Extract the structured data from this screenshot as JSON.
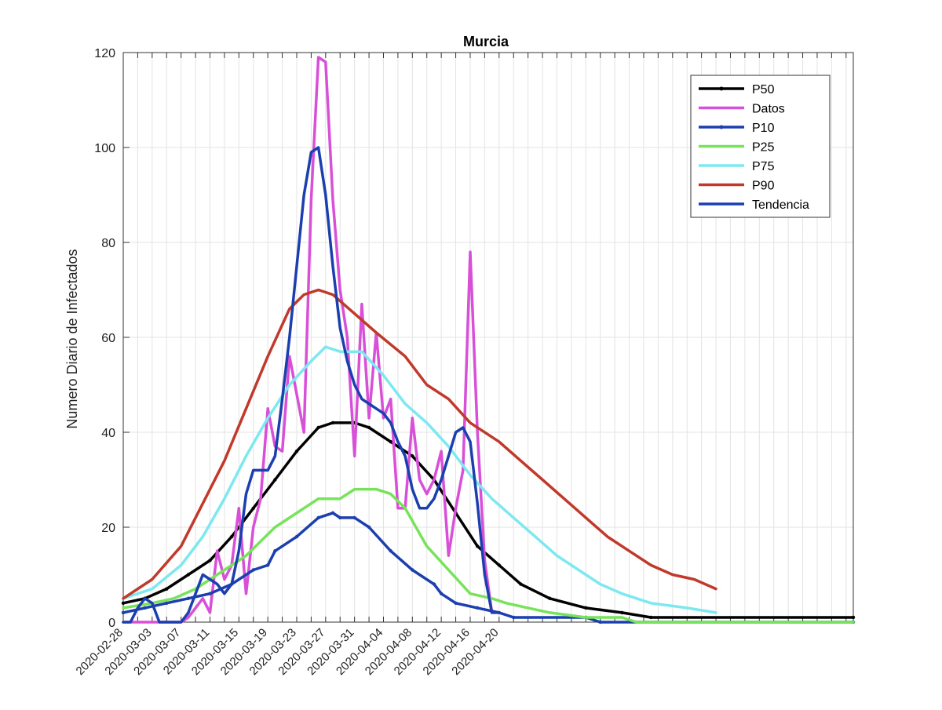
{
  "chart_data": {
    "type": "line",
    "title": "Murcia",
    "xlabel": "",
    "ylabel": "Numero Diario de Infectados",
    "x_tick_labels": [
      "2020-02-28",
      "2020-03-03",
      "2020-03-07",
      "2020-03-11",
      "2020-03-15",
      "2020-03-19",
      "2020-03-23",
      "2020-03-27",
      "2020-03-31",
      "2020-04-04",
      "2020-04-08",
      "2020-04-12",
      "2020-04-16",
      "2020-04-20"
    ],
    "y_ticks": [
      0,
      20,
      40,
      60,
      80,
      100,
      120
    ],
    "ylim": [
      0,
      120
    ],
    "x_start": "2020-02-28",
    "x_end": "2020-06-08",
    "grid": true,
    "legend_position": "top-right",
    "series": [
      {
        "name": "P50",
        "color": "#000000",
        "marker": "dot",
        "points": [
          [
            "2020-02-28",
            4
          ],
          [
            "2020-03-02",
            5
          ],
          [
            "2020-03-05",
            7
          ],
          [
            "2020-03-08",
            10
          ],
          [
            "2020-03-11",
            13
          ],
          [
            "2020-03-14",
            18
          ],
          [
            "2020-03-17",
            24
          ],
          [
            "2020-03-20",
            30
          ],
          [
            "2020-03-23",
            36
          ],
          [
            "2020-03-26",
            41
          ],
          [
            "2020-03-28",
            42
          ],
          [
            "2020-03-31",
            42
          ],
          [
            "2020-04-02",
            41
          ],
          [
            "2020-04-05",
            38
          ],
          [
            "2020-04-08",
            35
          ],
          [
            "2020-04-11",
            30
          ],
          [
            "2020-04-14",
            23
          ],
          [
            "2020-04-17",
            16
          ],
          [
            "2020-04-20",
            12
          ],
          [
            "2020-04-23",
            8
          ],
          [
            "2020-04-27",
            5
          ],
          [
            "2020-05-02",
            3
          ],
          [
            "2020-05-07",
            2
          ],
          [
            "2020-05-11",
            1
          ],
          [
            "2020-06-08",
            1
          ]
        ]
      },
      {
        "name": "Datos",
        "color": "#d84fd8",
        "marker": "none",
        "points": [
          [
            "2020-02-28",
            0
          ],
          [
            "2020-02-29",
            0
          ],
          [
            "2020-03-01",
            0
          ],
          [
            "2020-03-02",
            0
          ],
          [
            "2020-03-03",
            0
          ],
          [
            "2020-03-04",
            0
          ],
          [
            "2020-03-05",
            0
          ],
          [
            "2020-03-06",
            0
          ],
          [
            "2020-03-07",
            0
          ],
          [
            "2020-03-08",
            1
          ],
          [
            "2020-03-09",
            3
          ],
          [
            "2020-03-10",
            5
          ],
          [
            "2020-03-11",
            2
          ],
          [
            "2020-03-12",
            15
          ],
          [
            "2020-03-13",
            9
          ],
          [
            "2020-03-14",
            12
          ],
          [
            "2020-03-15",
            24
          ],
          [
            "2020-03-16",
            6
          ],
          [
            "2020-03-17",
            20
          ],
          [
            "2020-03-18",
            26
          ],
          [
            "2020-03-19",
            45
          ],
          [
            "2020-03-20",
            37
          ],
          [
            "2020-03-21",
            36
          ],
          [
            "2020-03-22",
            56
          ],
          [
            "2020-03-23",
            48
          ],
          [
            "2020-03-24",
            40
          ],
          [
            "2020-03-25",
            89
          ],
          [
            "2020-03-26",
            119
          ],
          [
            "2020-03-27",
            118
          ],
          [
            "2020-03-28",
            89
          ],
          [
            "2020-03-29",
            70
          ],
          [
            "2020-03-30",
            60
          ],
          [
            "2020-03-31",
            35
          ],
          [
            "2020-04-01",
            67
          ],
          [
            "2020-04-02",
            43
          ],
          [
            "2020-04-03",
            61
          ],
          [
            "2020-04-04",
            43
          ],
          [
            "2020-04-05",
            47
          ],
          [
            "2020-04-06",
            24
          ],
          [
            "2020-04-07",
            24
          ],
          [
            "2020-04-08",
            43
          ],
          [
            "2020-04-09",
            30
          ],
          [
            "2020-04-10",
            27
          ],
          [
            "2020-04-11",
            30
          ],
          [
            "2020-04-12",
            36
          ],
          [
            "2020-04-13",
            14
          ],
          [
            "2020-04-14",
            24
          ],
          [
            "2020-04-15",
            32
          ],
          [
            "2020-04-16",
            78
          ],
          [
            "2020-04-17",
            40
          ],
          [
            "2020-04-18",
            13
          ],
          [
            "2020-04-19",
            2
          ]
        ]
      },
      {
        "name": "P10",
        "color": "#1c3fb0",
        "marker": "dot",
        "points": [
          [
            "2020-02-28",
            2
          ],
          [
            "2020-03-02",
            3
          ],
          [
            "2020-03-05",
            4
          ],
          [
            "2020-03-08",
            5
          ],
          [
            "2020-03-11",
            6
          ],
          [
            "2020-03-14",
            8
          ],
          [
            "2020-03-17",
            11
          ],
          [
            "2020-03-19",
            12
          ],
          [
            "2020-03-20",
            15
          ],
          [
            "2020-03-23",
            18
          ],
          [
            "2020-03-26",
            22
          ],
          [
            "2020-03-28",
            23
          ],
          [
            "2020-03-29",
            22
          ],
          [
            "2020-03-31",
            22
          ],
          [
            "2020-04-02",
            20
          ],
          [
            "2020-04-05",
            15
          ],
          [
            "2020-04-08",
            11
          ],
          [
            "2020-04-11",
            8
          ],
          [
            "2020-04-12",
            6
          ],
          [
            "2020-04-14",
            4
          ],
          [
            "2020-04-17",
            3
          ],
          [
            "2020-04-20",
            2
          ],
          [
            "2020-04-22",
            1
          ],
          [
            "2020-05-02",
            1
          ],
          [
            "2020-05-04",
            0
          ],
          [
            "2020-06-08",
            0
          ]
        ]
      },
      {
        "name": "P25",
        "color": "#77e35a",
        "marker": "none",
        "points": [
          [
            "2020-02-28",
            3
          ],
          [
            "2020-03-03",
            4
          ],
          [
            "2020-03-06",
            5
          ],
          [
            "2020-03-09",
            7
          ],
          [
            "2020-03-12",
            10
          ],
          [
            "2020-03-16",
            14
          ],
          [
            "2020-03-20",
            20
          ],
          [
            "2020-03-24",
            24
          ],
          [
            "2020-03-26",
            26
          ],
          [
            "2020-03-29",
            26
          ],
          [
            "2020-03-31",
            28
          ],
          [
            "2020-04-03",
            28
          ],
          [
            "2020-04-05",
            27
          ],
          [
            "2020-04-07",
            24
          ],
          [
            "2020-04-10",
            16
          ],
          [
            "2020-04-13",
            11
          ],
          [
            "2020-04-16",
            6
          ],
          [
            "2020-04-19",
            5
          ],
          [
            "2020-04-21",
            4
          ],
          [
            "2020-04-24",
            3
          ],
          [
            "2020-04-27",
            2
          ],
          [
            "2020-05-02",
            1
          ],
          [
            "2020-05-07",
            1
          ],
          [
            "2020-05-09",
            0
          ],
          [
            "2020-06-08",
            0
          ]
        ]
      },
      {
        "name": "P75",
        "color": "#7de8f0",
        "marker": "none",
        "points": [
          [
            "2020-02-28",
            5
          ],
          [
            "2020-03-03",
            7
          ],
          [
            "2020-03-07",
            12
          ],
          [
            "2020-03-10",
            18
          ],
          [
            "2020-03-13",
            26
          ],
          [
            "2020-03-16",
            35
          ],
          [
            "2020-03-19",
            43
          ],
          [
            "2020-03-22",
            50
          ],
          [
            "2020-03-25",
            55
          ],
          [
            "2020-03-27",
            58
          ],
          [
            "2020-03-29",
            57
          ],
          [
            "2020-04-01",
            57
          ],
          [
            "2020-04-04",
            52
          ],
          [
            "2020-04-07",
            46
          ],
          [
            "2020-04-10",
            42
          ],
          [
            "2020-04-13",
            37
          ],
          [
            "2020-04-16",
            31
          ],
          [
            "2020-04-19",
            26
          ],
          [
            "2020-04-22",
            22
          ],
          [
            "2020-04-25",
            18
          ],
          [
            "2020-04-28",
            14
          ],
          [
            "2020-05-01",
            11
          ],
          [
            "2020-05-04",
            8
          ],
          [
            "2020-05-07",
            6
          ],
          [
            "2020-05-11",
            4
          ],
          [
            "2020-05-16",
            3
          ],
          [
            "2020-05-20",
            2
          ]
        ]
      },
      {
        "name": "P90",
        "color": "#c0392b",
        "marker": "none",
        "points": [
          [
            "2020-02-28",
            5
          ],
          [
            "2020-03-03",
            9
          ],
          [
            "2020-03-07",
            16
          ],
          [
            "2020-03-10",
            25
          ],
          [
            "2020-03-13",
            34
          ],
          [
            "2020-03-16",
            45
          ],
          [
            "2020-03-19",
            56
          ],
          [
            "2020-03-22",
            66
          ],
          [
            "2020-03-24",
            69
          ],
          [
            "2020-03-26",
            70
          ],
          [
            "2020-03-28",
            69
          ],
          [
            "2020-03-31",
            65
          ],
          [
            "2020-04-03",
            61
          ],
          [
            "2020-04-07",
            56
          ],
          [
            "2020-04-10",
            50
          ],
          [
            "2020-04-13",
            47
          ],
          [
            "2020-04-16",
            42
          ],
          [
            "2020-04-20",
            38
          ],
          [
            "2020-04-23",
            34
          ],
          [
            "2020-04-26",
            30
          ],
          [
            "2020-04-29",
            26
          ],
          [
            "2020-05-02",
            22
          ],
          [
            "2020-05-05",
            18
          ],
          [
            "2020-05-08",
            15
          ],
          [
            "2020-05-11",
            12
          ],
          [
            "2020-05-14",
            10
          ],
          [
            "2020-05-17",
            9
          ],
          [
            "2020-05-20",
            7
          ]
        ]
      },
      {
        "name": "Tendencia",
        "color": "#1c3fb0",
        "marker": "none",
        "points": [
          [
            "2020-02-28",
            0
          ],
          [
            "2020-02-29",
            0
          ],
          [
            "2020-03-01",
            3
          ],
          [
            "2020-03-02",
            5
          ],
          [
            "2020-03-03",
            4
          ],
          [
            "2020-03-04",
            0
          ],
          [
            "2020-03-05",
            0
          ],
          [
            "2020-03-06",
            0
          ],
          [
            "2020-03-07",
            0
          ],
          [
            "2020-03-08",
            2
          ],
          [
            "2020-03-09",
            6
          ],
          [
            "2020-03-10",
            10
          ],
          [
            "2020-03-11",
            9
          ],
          [
            "2020-03-12",
            8
          ],
          [
            "2020-03-13",
            6
          ],
          [
            "2020-03-14",
            8
          ],
          [
            "2020-03-15",
            15
          ],
          [
            "2020-03-16",
            27
          ],
          [
            "2020-03-17",
            32
          ],
          [
            "2020-03-18",
            32
          ],
          [
            "2020-03-19",
            32
          ],
          [
            "2020-03-20",
            35
          ],
          [
            "2020-03-21",
            47
          ],
          [
            "2020-03-22",
            60
          ],
          [
            "2020-03-23",
            75
          ],
          [
            "2020-03-24",
            90
          ],
          [
            "2020-03-25",
            99
          ],
          [
            "2020-03-26",
            100
          ],
          [
            "2020-03-27",
            90
          ],
          [
            "2020-03-28",
            75
          ],
          [
            "2020-03-29",
            62
          ],
          [
            "2020-03-30",
            55
          ],
          [
            "2020-03-31",
            50
          ],
          [
            "2020-04-01",
            47
          ],
          [
            "2020-04-02",
            46
          ],
          [
            "2020-04-03",
            45
          ],
          [
            "2020-04-04",
            44
          ],
          [
            "2020-04-05",
            42
          ],
          [
            "2020-04-06",
            38
          ],
          [
            "2020-04-07",
            35
          ],
          [
            "2020-04-08",
            28
          ],
          [
            "2020-04-09",
            24
          ],
          [
            "2020-04-10",
            24
          ],
          [
            "2020-04-11",
            26
          ],
          [
            "2020-04-12",
            30
          ],
          [
            "2020-04-13",
            35
          ],
          [
            "2020-04-14",
            40
          ],
          [
            "2020-04-15",
            41
          ],
          [
            "2020-04-16",
            38
          ],
          [
            "2020-04-17",
            25
          ],
          [
            "2020-04-18",
            10
          ],
          [
            "2020-04-19",
            2
          ],
          [
            "2020-04-20",
            2
          ]
        ]
      }
    ]
  }
}
